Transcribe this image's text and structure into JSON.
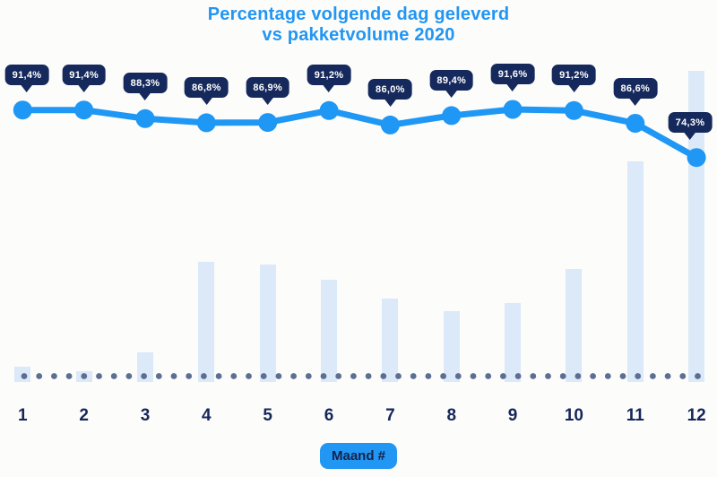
{
  "title": {
    "line1": "Percentage volgende dag geleverd",
    "line2": "vs pakketvolume 2020"
  },
  "xaxis": {
    "badge_label": "Maand #"
  },
  "colors": {
    "accent_blue": "#2196f3",
    "line_blue": "#1f97f4",
    "badge_navy": "#16295c",
    "label_navy": "#15265a",
    "bar_fill": "#dbe9f8",
    "baseline_dot": "#5d6e93",
    "badge_text": "#ffffff",
    "background": "#fcfcfb"
  },
  "chart_data": {
    "type": "combo",
    "title": "Percentage volgende dag geleverd vs pakketvolume 2020",
    "categories": [
      "1",
      "2",
      "3",
      "4",
      "5",
      "6",
      "7",
      "8",
      "9",
      "10",
      "11",
      "12"
    ],
    "xlabel": "Maand #",
    "legend": "none",
    "grid": "none",
    "baseline": "dotted",
    "series": [
      {
        "name": "Percentage volgende dag geleverd",
        "type": "line",
        "unit": "%",
        "values": [
          91.4,
          91.4,
          88.3,
          86.8,
          86.9,
          91.2,
          86.0,
          89.4,
          91.6,
          91.2,
          86.6,
          74.3
        ],
        "labels": [
          "91,4%",
          "91,4%",
          "88,3%",
          "86,8%",
          "86,9%",
          "91,2%",
          "86,0%",
          "89,4%",
          "91,6%",
          "91,2%",
          "86,6%",
          "74,3%"
        ]
      },
      {
        "name": "Pakketvolume",
        "type": "bar",
        "unit": "relative-to-max-percent (estimated, no y-axis shown)",
        "values": [
          4.9,
          3.5,
          9.5,
          38.6,
          37.8,
          32.9,
          26.8,
          22.8,
          25.4,
          36.3,
          70.9,
          100
        ]
      }
    ]
  }
}
